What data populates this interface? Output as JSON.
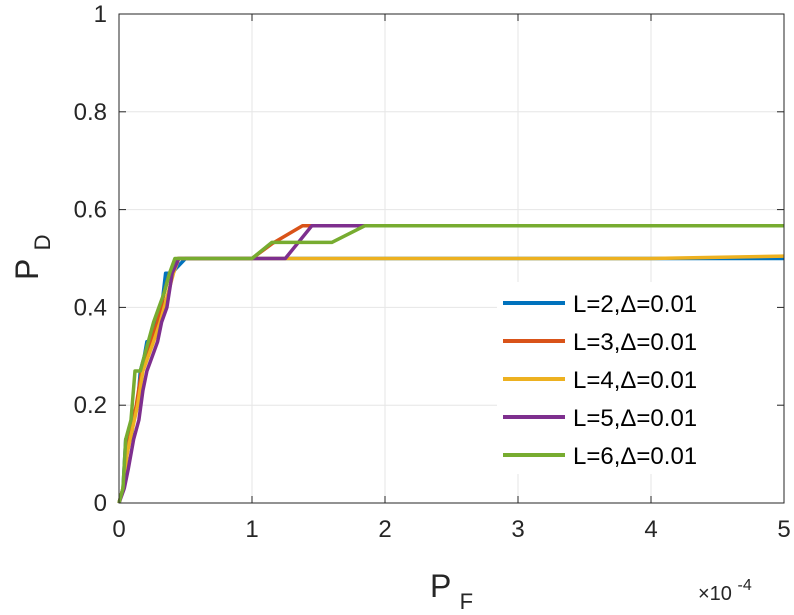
{
  "chart_data": {
    "type": "line",
    "title": "",
    "xlabel": {
      "main": "P",
      "sub": "F"
    },
    "ylabel": {
      "main": "P",
      "sub": "D"
    },
    "x_exponent": {
      "base": "×10",
      "power": "-4"
    },
    "xlim": [
      0,
      5
    ],
    "ylim": [
      0,
      1
    ],
    "xticks": [
      "0",
      "1",
      "2",
      "3",
      "4",
      "5"
    ],
    "yticks": [
      "0",
      "0.2",
      "0.4",
      "0.6",
      "0.8",
      "1"
    ],
    "grid": true,
    "legend_position": "right",
    "series": [
      {
        "name": "L=2,Δ=0.01",
        "color": "#0072BD",
        "points": [
          [
            0,
            0
          ],
          [
            0.03,
            0.03
          ],
          [
            0.05,
            0.13
          ],
          [
            0.09,
            0.13
          ],
          [
            0.11,
            0.17
          ],
          [
            0.14,
            0.2
          ],
          [
            0.16,
            0.27
          ],
          [
            0.19,
            0.3
          ],
          [
            0.21,
            0.33
          ],
          [
            0.25,
            0.33
          ],
          [
            0.28,
            0.37
          ],
          [
            0.32,
            0.4
          ],
          [
            0.35,
            0.47
          ],
          [
            0.4,
            0.47
          ],
          [
            0.43,
            0.48
          ],
          [
            0.5,
            0.5
          ],
          [
            1.0,
            0.5
          ],
          [
            3.0,
            0.5
          ],
          [
            5.0,
            0.5
          ]
        ]
      },
      {
        "name": "L=3,Δ=0.01",
        "color": "#D95319",
        "points": [
          [
            0,
            0
          ],
          [
            0.03,
            0.03
          ],
          [
            0.06,
            0.1
          ],
          [
            0.09,
            0.15
          ],
          [
            0.13,
            0.2
          ],
          [
            0.17,
            0.27
          ],
          [
            0.2,
            0.3
          ],
          [
            0.24,
            0.33
          ],
          [
            0.29,
            0.37
          ],
          [
            0.34,
            0.43
          ],
          [
            0.38,
            0.47
          ],
          [
            0.44,
            0.5
          ],
          [
            1.0,
            0.5
          ],
          [
            1.15,
            0.53
          ],
          [
            1.38,
            0.567
          ],
          [
            5.0,
            0.567
          ]
        ]
      },
      {
        "name": "L=4,Δ=0.01",
        "color": "#EDB120",
        "points": [
          [
            0,
            0
          ],
          [
            0.03,
            0.03
          ],
          [
            0.06,
            0.1
          ],
          [
            0.1,
            0.15
          ],
          [
            0.14,
            0.2
          ],
          [
            0.18,
            0.27
          ],
          [
            0.22,
            0.3
          ],
          [
            0.26,
            0.33
          ],
          [
            0.31,
            0.37
          ],
          [
            0.36,
            0.42
          ],
          [
            0.41,
            0.47
          ],
          [
            0.45,
            0.5
          ],
          [
            1.0,
            0.5
          ],
          [
            3.0,
            0.5
          ],
          [
            4.0,
            0.5
          ],
          [
            5.0,
            0.505
          ]
        ]
      },
      {
        "name": "L=5,Δ=0.01",
        "color": "#7E2F8E",
        "points": [
          [
            0,
            0
          ],
          [
            0.04,
            0.03
          ],
          [
            0.07,
            0.07
          ],
          [
            0.11,
            0.13
          ],
          [
            0.15,
            0.17
          ],
          [
            0.18,
            0.23
          ],
          [
            0.21,
            0.27
          ],
          [
            0.25,
            0.3
          ],
          [
            0.29,
            0.33
          ],
          [
            0.32,
            0.37
          ],
          [
            0.36,
            0.4
          ],
          [
            0.4,
            0.47
          ],
          [
            0.45,
            0.5
          ],
          [
            1.0,
            0.5
          ],
          [
            1.25,
            0.5
          ],
          [
            1.45,
            0.567
          ],
          [
            5.0,
            0.567
          ]
        ]
      },
      {
        "name": "L=6,Δ=0.01",
        "color": "#77AC30",
        "points": [
          [
            0,
            0
          ],
          [
            0.03,
            0.03
          ],
          [
            0.05,
            0.13
          ],
          [
            0.09,
            0.17
          ],
          [
            0.12,
            0.27
          ],
          [
            0.16,
            0.27
          ],
          [
            0.19,
            0.3
          ],
          [
            0.22,
            0.33
          ],
          [
            0.26,
            0.37
          ],
          [
            0.3,
            0.4
          ],
          [
            0.34,
            0.43
          ],
          [
            0.38,
            0.47
          ],
          [
            0.42,
            0.5
          ],
          [
            1.0,
            0.5
          ],
          [
            1.15,
            0.533
          ],
          [
            1.6,
            0.533
          ],
          [
            1.85,
            0.567
          ],
          [
            5.0,
            0.567
          ]
        ]
      }
    ]
  }
}
